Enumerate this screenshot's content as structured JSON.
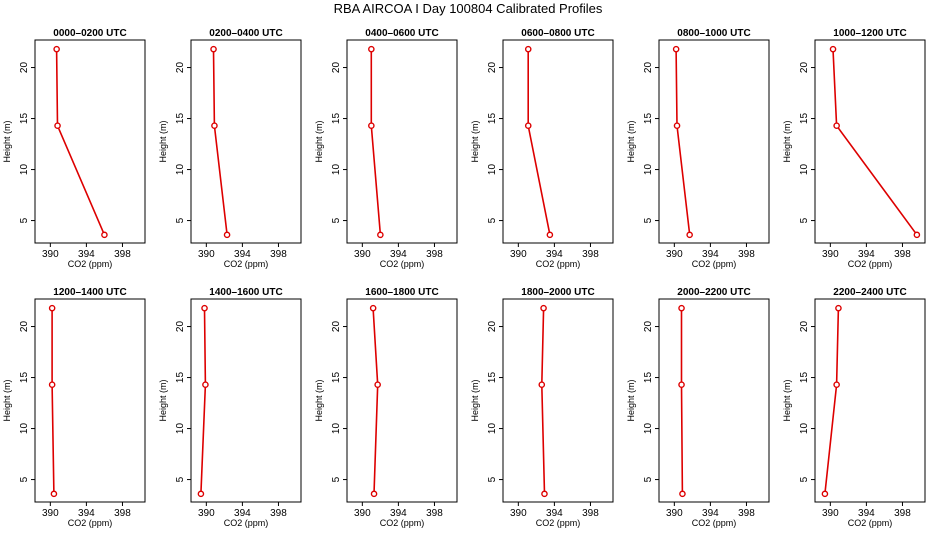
{
  "title": "RBA AIRCOA I  Day 100804  Calibrated Profiles",
  "chart_data": {
    "type": "line",
    "common": {
      "xlabel": "CO2 (ppm)",
      "ylabel": "Height (m)",
      "xlim": [
        388.3,
        400.5
      ],
      "ylim": [
        2.8,
        22.7
      ],
      "xticks": [
        390,
        394,
        398
      ],
      "yticks": [
        5,
        10,
        15,
        20
      ],
      "heights": [
        3.6,
        14.3,
        21.8
      ],
      "color": "#dd0000",
      "grid": false
    },
    "panels": [
      {
        "title": "0000–0200 UTC",
        "co2": [
          396.0,
          390.8,
          390.7
        ]
      },
      {
        "title": "0200–0400 UTC",
        "co2": [
          392.3,
          390.9,
          390.8
        ]
      },
      {
        "title": "0400–0600 UTC",
        "co2": [
          392.0,
          391.0,
          391.0
        ]
      },
      {
        "title": "0600–0800 UTC",
        "co2": [
          393.5,
          391.1,
          391.1
        ]
      },
      {
        "title": "0800–1000 UTC",
        "co2": [
          391.7,
          390.3,
          390.2
        ]
      },
      {
        "title": "1000–1200 UTC",
        "co2": [
          399.6,
          390.7,
          390.3
        ]
      },
      {
        "title": "1200–1400 UTC",
        "co2": [
          390.4,
          390.2,
          390.2
        ]
      },
      {
        "title": "1400–1600 UTC",
        "co2": [
          389.4,
          389.9,
          389.8
        ]
      },
      {
        "title": "1600–1800 UTC",
        "co2": [
          391.3,
          391.7,
          391.2
        ]
      },
      {
        "title": "1800–2000 UTC",
        "co2": [
          392.9,
          392.6,
          392.8
        ]
      },
      {
        "title": "2000–2200 UTC",
        "co2": [
          390.9,
          390.8,
          390.8
        ]
      },
      {
        "title": "2200–2400 UTC",
        "co2": [
          389.4,
          390.7,
          390.9
        ]
      }
    ]
  }
}
